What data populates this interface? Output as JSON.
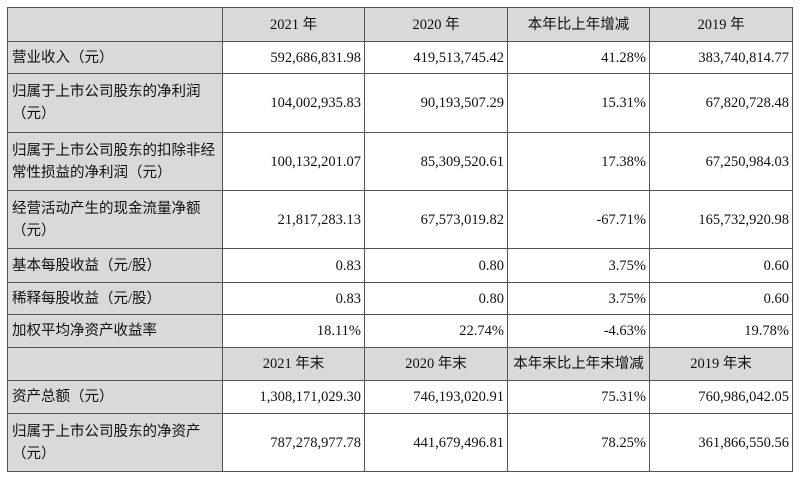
{
  "header1": [
    "",
    "2021 年",
    "2020 年",
    "本年比上年增减",
    "2019 年"
  ],
  "rows1": [
    {
      "label": "营业收入（元）",
      "values": [
        "592,686,831.98",
        "419,513,745.42",
        "41.28%",
        "383,740,814.77"
      ]
    },
    {
      "label": "归属于上市公司股东的净利润（元）",
      "values": [
        "104,002,935.83",
        "90,193,507.29",
        "15.31%",
        "67,820,728.48"
      ]
    },
    {
      "label": "归属于上市公司股东的扣除非经常性损益的净利润（元）",
      "values": [
        "100,132,201.07",
        "85,309,520.61",
        "17.38%",
        "67,250,984.03"
      ]
    },
    {
      "label": "经营活动产生的现金流量净额（元）",
      "values": [
        "21,817,283.13",
        "67,573,019.82",
        "-67.71%",
        "165,732,920.98"
      ]
    },
    {
      "label": "基本每股收益（元/股）",
      "values": [
        "0.83",
        "0.80",
        "3.75%",
        "0.60"
      ]
    },
    {
      "label": "稀释每股收益（元/股）",
      "values": [
        "0.83",
        "0.80",
        "3.75%",
        "0.60"
      ]
    },
    {
      "label": "加权平均净资产收益率",
      "values": [
        "18.11%",
        "22.74%",
        "-4.63%",
        "19.78%"
      ]
    }
  ],
  "header2": [
    "",
    "2021 年末",
    "2020 年末",
    "本年末比上年末增减",
    "2019 年末"
  ],
  "rows2": [
    {
      "label": "资产总额（元）",
      "values": [
        "1,308,171,029.30",
        "746,193,020.91",
        "75.31%",
        "760,986,042.05"
      ]
    },
    {
      "label": "归属于上市公司股东的净资产（元）",
      "values": [
        "787,278,977.78",
        "441,679,496.81",
        "78.25%",
        "361,866,550.56"
      ]
    }
  ]
}
